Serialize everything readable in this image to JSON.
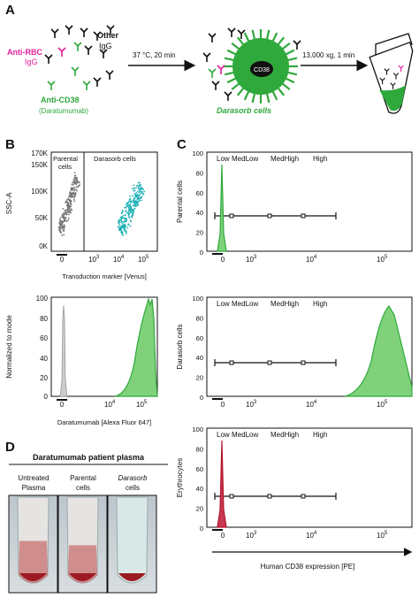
{
  "panels": {
    "a": "A",
    "b": "B",
    "c": "C",
    "d": "D"
  },
  "colors": {
    "magenta": "#e0219b",
    "green": "#2fa83c",
    "teal": "#1bb0b5",
    "gray": "#777777",
    "red": "#b3152b",
    "fill_green": "#7fd27a"
  },
  "panel_a": {
    "anti_rbc": "Anti-RBC",
    "igg_a": "IgG",
    "other": "Other",
    "igg_b": "IgG",
    "anti_cd38": "Anti-CD38",
    "daratumumab": "(Daratumumab)",
    "step1": "37 °C, 20 min",
    "cd38": "CD38",
    "darasorb_cells": "Darasorb cells",
    "step2": "13,000 xg, 1 min"
  },
  "panel_b_top": {
    "yticks": [
      "170K",
      "150K",
      "100K",
      "50K",
      "0K"
    ],
    "ylabel": "SSC-A",
    "xlabel": "Transduction marker [Venus]",
    "gate_left": [
      "Parental",
      "cells"
    ],
    "gate_right": "Darasorb cells",
    "xticks": {
      "zero": "0",
      "e3": "10",
      "e4": "10",
      "e5": "10",
      "exp3": "3",
      "exp4": "4",
      "exp5": "5"
    }
  },
  "panel_b_bottom": {
    "yticks": [
      "100",
      "80",
      "60",
      "40",
      "20",
      "0"
    ],
    "ylabel": "Normalized to mode",
    "xlabel": "Daratumumab [Alexa Fluor 647]",
    "xticks": {
      "zero": "0",
      "e4": "10",
      "e5": "10",
      "exp4": "4",
      "exp5": "5"
    }
  },
  "panel_c": {
    "gates": [
      "Low",
      "MedLow",
      "MedHigh",
      "High"
    ],
    "row_labels": [
      "Parental cells",
      "Darasorb cells",
      "Erythrocytes"
    ],
    "yticks": [
      "100",
      "80",
      "60",
      "40",
      "20",
      "0"
    ],
    "xticks": {
      "zero": "0",
      "e3": "10",
      "e4": "10",
      "e5": "10",
      "exp3": "3",
      "exp4": "4",
      "exp5": "5"
    },
    "xlabel": "Human CD38 expression [PE]"
  },
  "panel_d": {
    "title": "Daratumumab patient plasma",
    "tubes": [
      {
        "line1": "Untreated",
        "line2": "Plasma"
      },
      {
        "line1": "Parental",
        "line2": "cells"
      },
      {
        "line1": "Darasorb",
        "line2": "cells"
      }
    ]
  }
}
